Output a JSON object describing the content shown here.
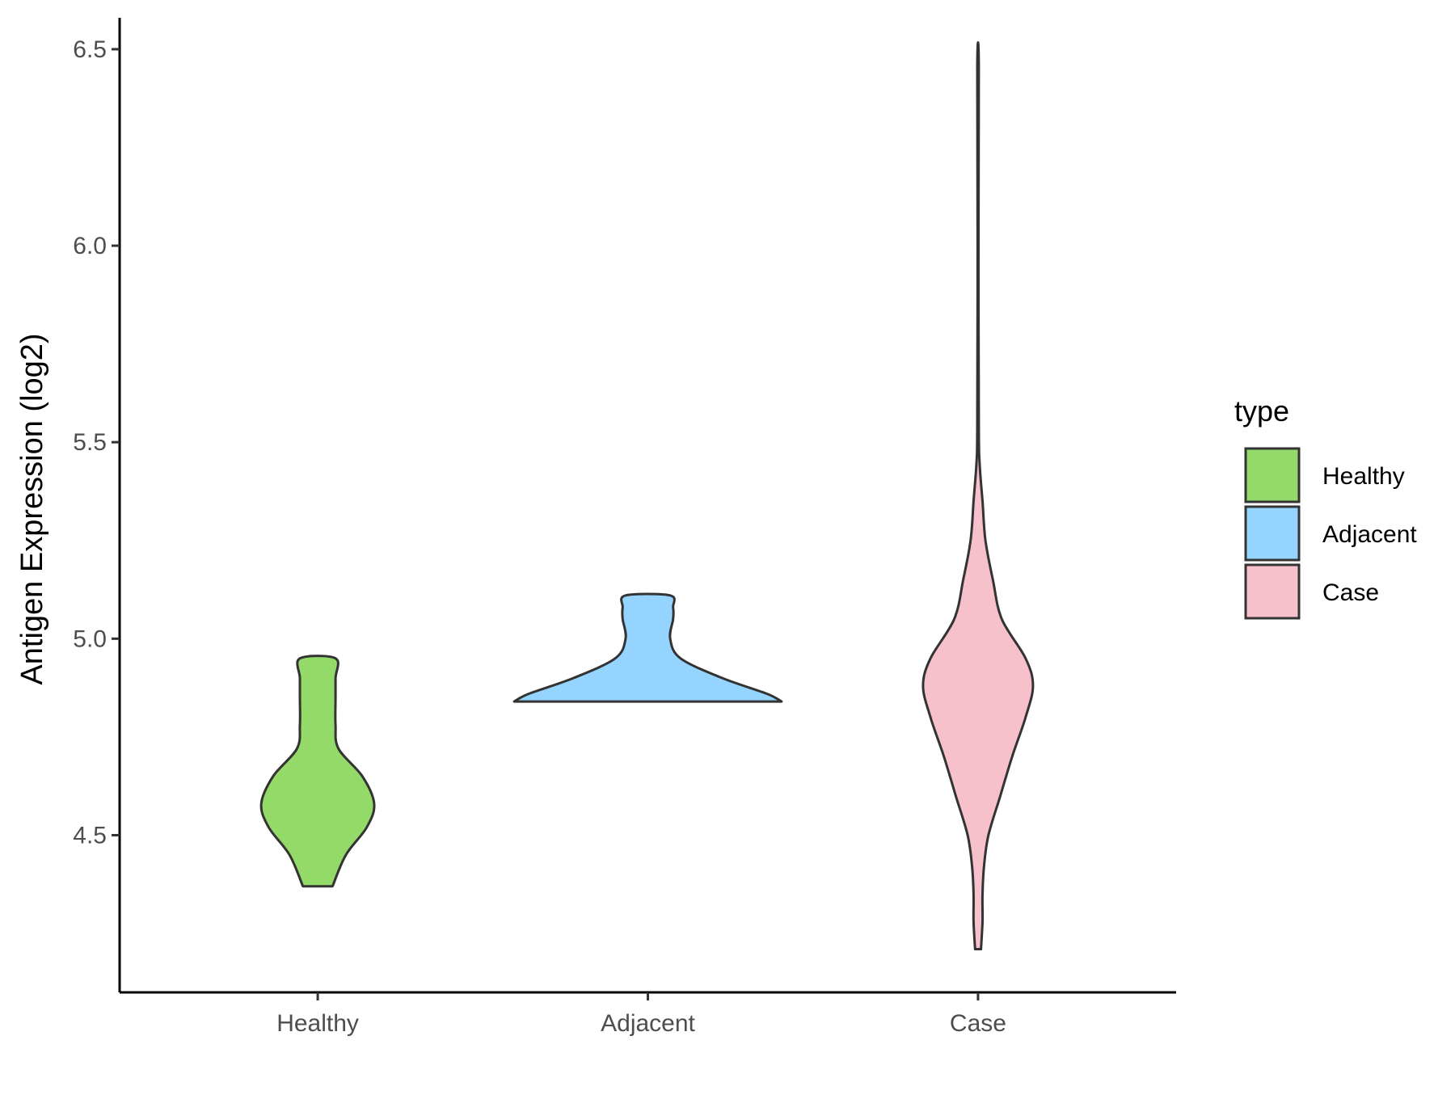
{
  "chart_data": {
    "type": "violin",
    "ylabel": "Antigen Expression (log2)",
    "xlabel": "",
    "ylim": [
      4.1,
      6.58
    ],
    "yticks": [
      4.5,
      5.0,
      5.5,
      6.0,
      6.5
    ],
    "ytick_labels": [
      "4.5",
      "5.0",
      "5.5",
      "6.0",
      "6.5"
    ],
    "categories": [
      "Healthy",
      "Adjacent",
      "Case"
    ],
    "grid": false,
    "legend": {
      "title": "type",
      "position": "right",
      "entries": [
        "Healthy",
        "Adjacent",
        "Case"
      ]
    },
    "series": [
      {
        "name": "Healthy",
        "color": "#93DA69",
        "min": 4.37,
        "max": 4.95,
        "profile": [
          [
            4.37,
            0.1
          ],
          [
            4.45,
            0.19
          ],
          [
            4.52,
            0.33
          ],
          [
            4.58,
            0.38
          ],
          [
            4.65,
            0.3
          ],
          [
            4.72,
            0.14
          ],
          [
            4.78,
            0.12
          ],
          [
            4.85,
            0.12
          ],
          [
            4.9,
            0.12
          ],
          [
            4.95,
            0.12
          ]
        ]
      },
      {
        "name": "Adjacent",
        "color": "#94D4FF",
        "min": 4.84,
        "max": 5.11,
        "profile": [
          [
            4.84,
            0.9
          ],
          [
            4.86,
            0.8
          ],
          [
            4.9,
            0.5
          ],
          [
            4.95,
            0.22
          ],
          [
            5.0,
            0.15
          ],
          [
            5.05,
            0.17
          ],
          [
            5.08,
            0.17
          ],
          [
            5.11,
            0.15
          ]
        ]
      },
      {
        "name": "Case",
        "color": "#F7C1CC",
        "min": 4.21,
        "max": 6.46,
        "profile": [
          [
            4.21,
            0.02
          ],
          [
            4.28,
            0.03
          ],
          [
            4.35,
            0.03
          ],
          [
            4.42,
            0.04
          ],
          [
            4.5,
            0.07
          ],
          [
            4.6,
            0.15
          ],
          [
            4.7,
            0.23
          ],
          [
            4.8,
            0.32
          ],
          [
            4.88,
            0.37
          ],
          [
            4.95,
            0.32
          ],
          [
            5.05,
            0.16
          ],
          [
            5.15,
            0.1
          ],
          [
            5.25,
            0.05
          ],
          [
            5.35,
            0.03
          ],
          [
            5.45,
            0.01
          ],
          [
            5.55,
            0.005
          ],
          [
            6.0,
            0.003
          ],
          [
            6.46,
            0.005
          ]
        ]
      }
    ]
  }
}
